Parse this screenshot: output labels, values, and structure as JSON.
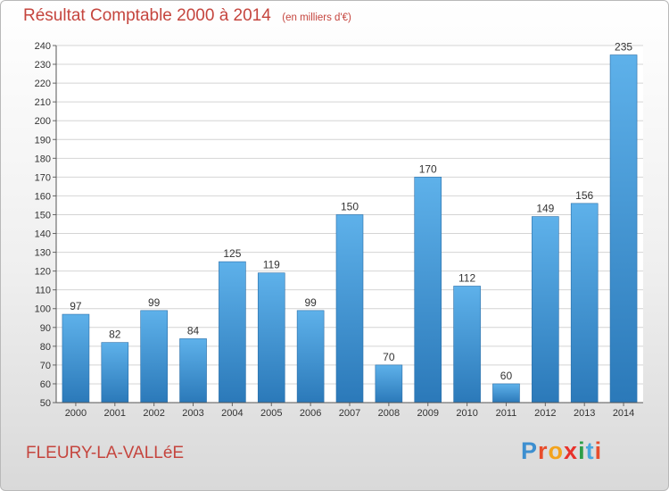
{
  "chart_data": {
    "type": "bar",
    "title": "Résultat Comptable 2000 à 2014",
    "unit": "(en milliers d'€)",
    "categories": [
      "2000",
      "2001",
      "2002",
      "2003",
      "2004",
      "2005",
      "2006",
      "2007",
      "2008",
      "2009",
      "2010",
      "2011",
      "2012",
      "2013",
      "2014"
    ],
    "values": [
      97,
      82,
      99,
      84,
      125,
      119,
      99,
      150,
      70,
      170,
      112,
      60,
      149,
      156,
      235
    ],
    "ylim": [
      50,
      240
    ],
    "yticks": [
      50,
      60,
      70,
      80,
      90,
      100,
      110,
      120,
      130,
      140,
      150,
      160,
      170,
      180,
      190,
      200,
      210,
      220,
      230,
      240
    ],
    "grid": true,
    "bar_color": "#3d94d6"
  },
  "footer": {
    "commune": "FLEURY-LA-VALLéE",
    "brand": [
      "P",
      "r",
      "o",
      "x",
      "i",
      "t",
      "i"
    ],
    "brand_colors": [
      "#3d8fd0",
      "#e84d2c",
      "#f3a31c",
      "#e8322b",
      "#2e9e48",
      "#4aa7dd",
      "#e84d2c"
    ]
  }
}
